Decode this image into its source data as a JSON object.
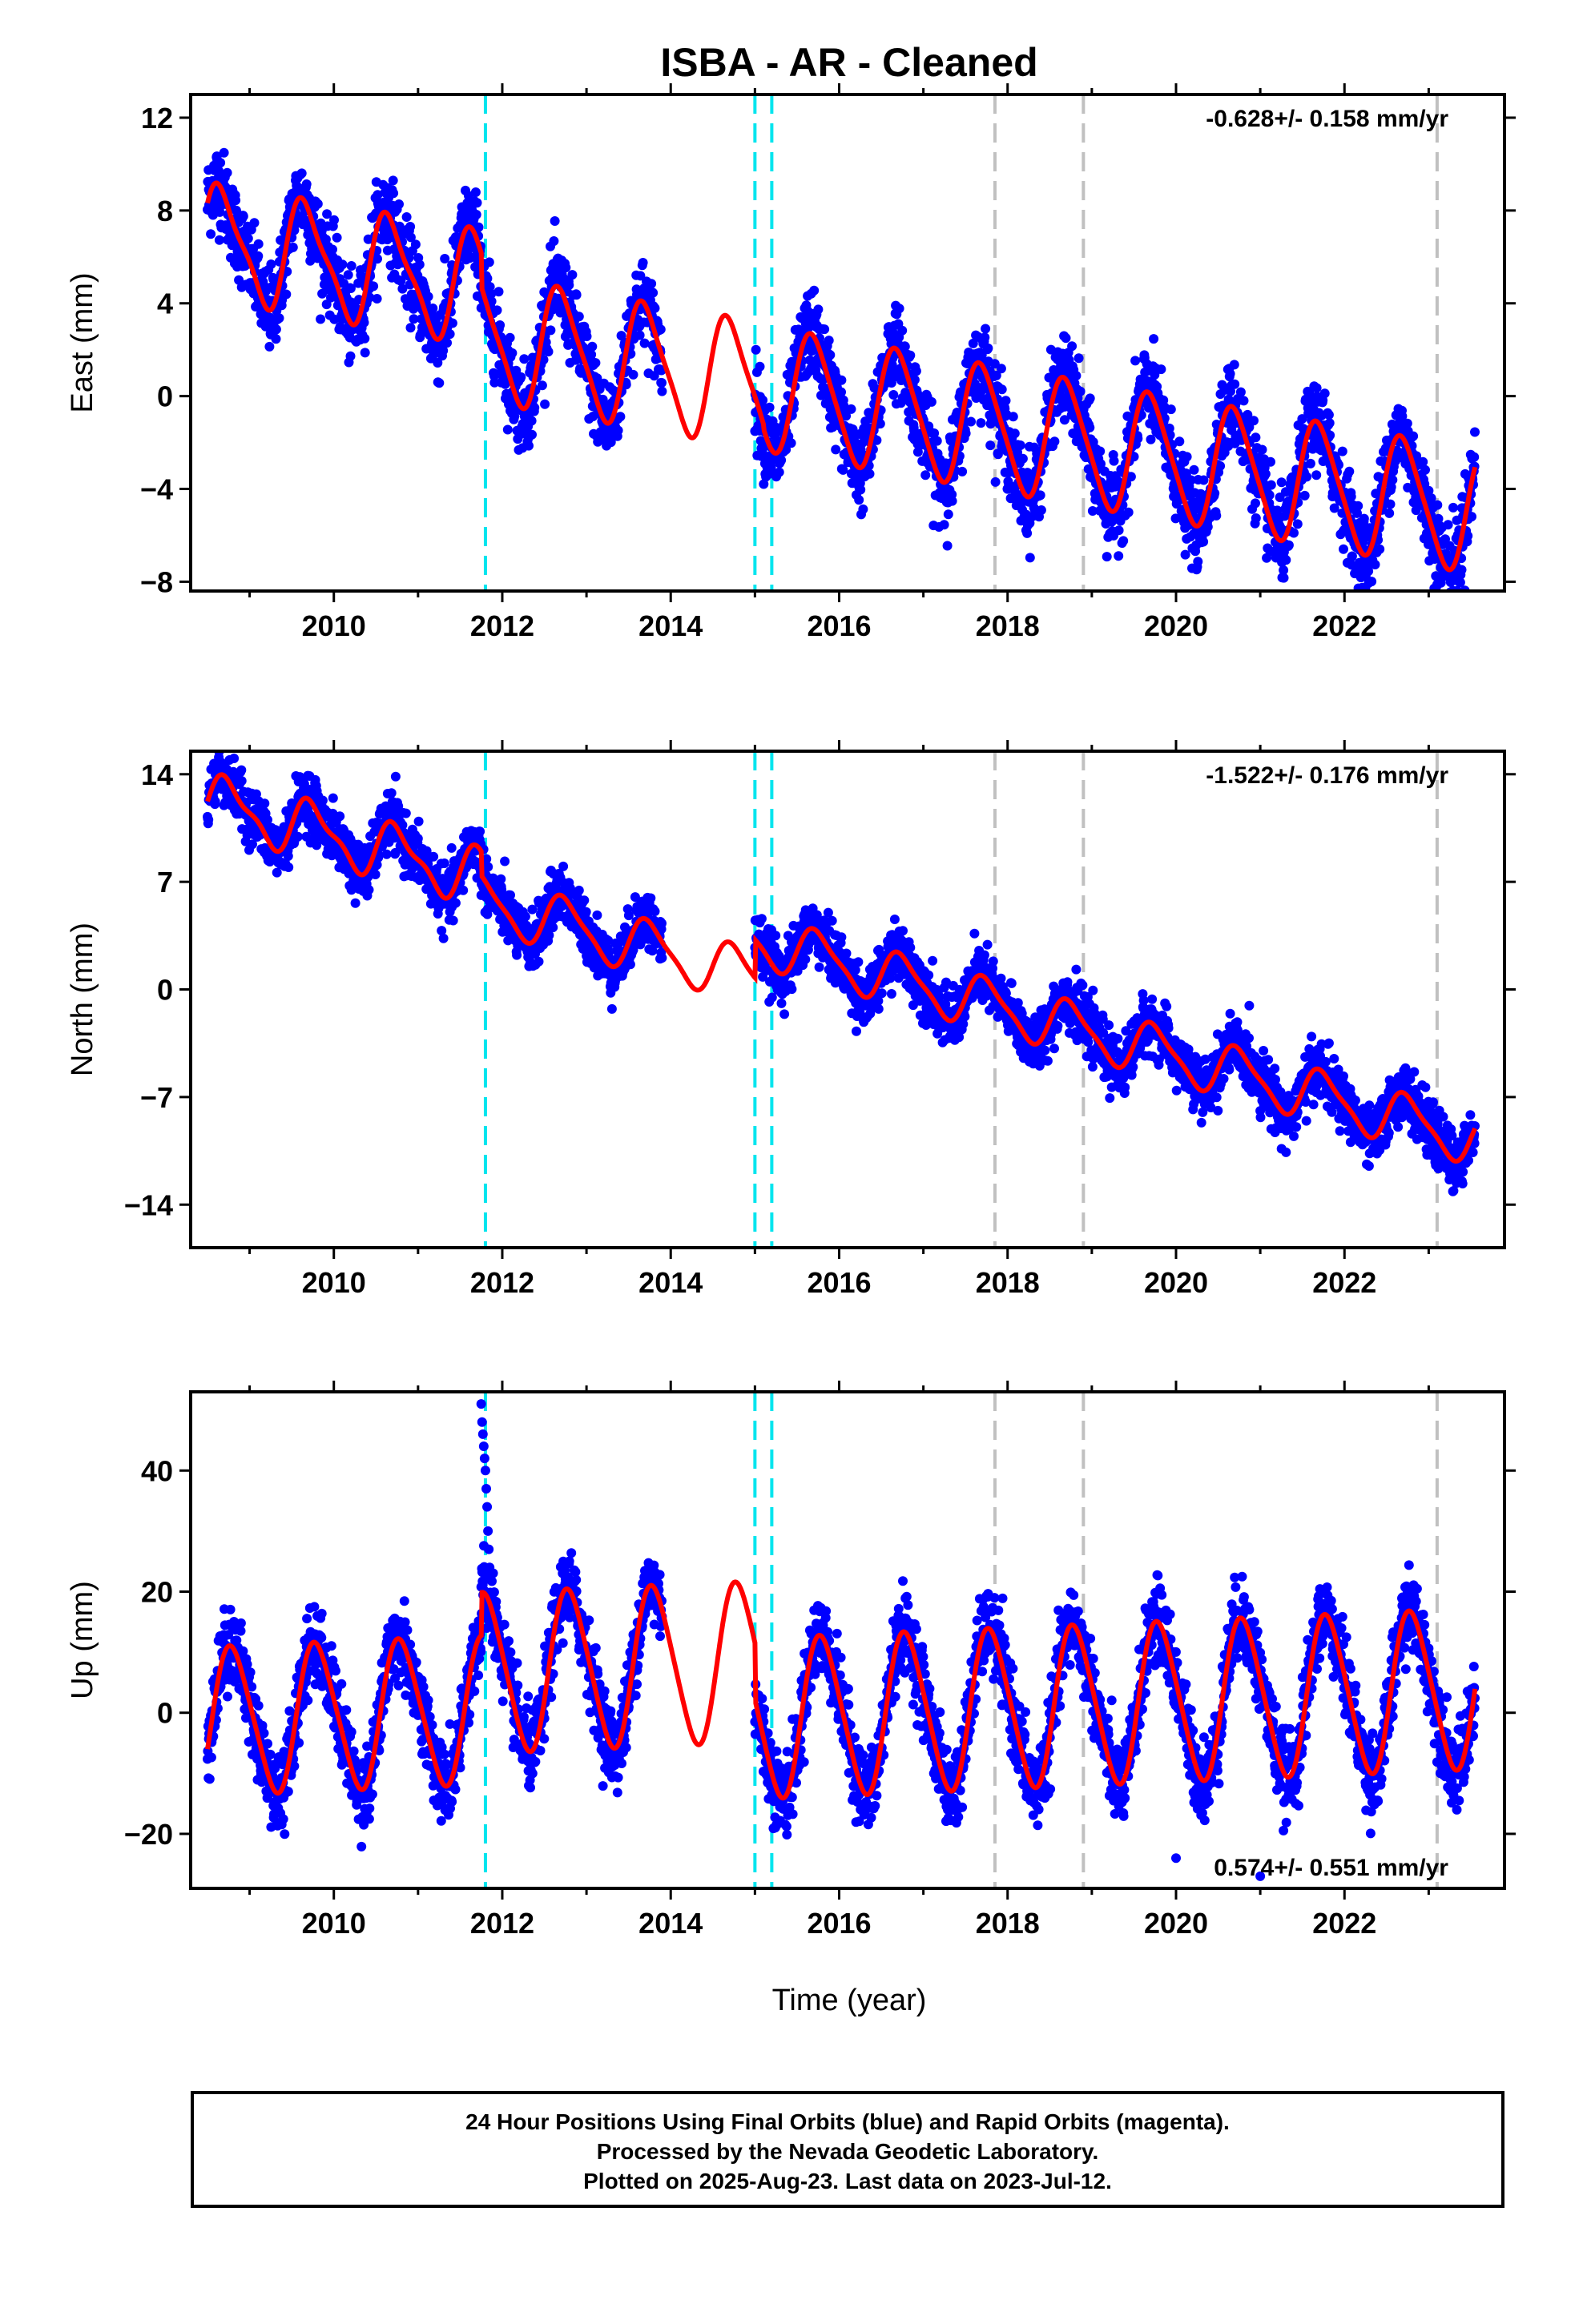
{
  "figure": {
    "title": "ISBA  - AR - Cleaned",
    "x_axis_label": "Time (year)"
  },
  "footer": {
    "line1": "24 Hour Positions Using Final Orbits (blue) and Rapid Orbits (magenta).",
    "line2": "Processed by the Nevada Geodetic Laboratory.",
    "line3": "Plotted on 2025-Aug-23. Last data on 2023-Jul-12."
  },
  "colors": {
    "data_points": "#0000ff",
    "model_fit": "#ff0000",
    "equipment_change": "#00e5ee",
    "other_event": "#c0c0c0",
    "frame": "#000000"
  },
  "chart_data": [
    {
      "type": "scatter",
      "name": "east",
      "ylabel": "East (mm)",
      "rate_text": "-0.628+/- 0.158 mm/yr",
      "rate_position": "top-right",
      "xlim": [
        2008.3,
        2023.9
      ],
      "ylim": [
        -8.4,
        13.0
      ],
      "xticks": [
        2010,
        2012,
        2014,
        2016,
        2018,
        2020,
        2022
      ],
      "yticks": [
        -8,
        -4,
        0,
        4,
        8,
        12
      ],
      "ytick_labels": [
        "−8",
        "−4",
        "0",
        "4",
        "8",
        "12"
      ],
      "equipment_changes": [
        2011.8,
        2015.0,
        2015.2
      ],
      "other_events": [
        2017.85,
        2018.9,
        2023.1
      ],
      "model": {
        "segments": [
          {
            "t0": 2008.5,
            "t1": 2011.75,
            "mid": 2010.1,
            "offset": 5.7,
            "rate": -0.628,
            "annual_amp": 2.3,
            "annual_phase": 0.42,
            "semi_amp": 0.6
          },
          {
            "t0": 2011.75,
            "t1": 2015.1,
            "mid": 2013.4,
            "offset": 1.5,
            "rate": -0.628,
            "annual_amp": 2.6,
            "annual_phase": 0.45,
            "semi_amp": 0.5
          },
          {
            "t0": 2015.1,
            "t1": 2023.55,
            "mid": 2019.3,
            "offset": -2.3,
            "rate": -0.628,
            "annual_amp": 2.6,
            "annual_phase": 0.45,
            "semi_amp": 0.4
          }
        ],
        "gaps": [
          [
            2013.9,
            2015.0
          ]
        ],
        "scatter_sigma": 0.9
      }
    },
    {
      "type": "scatter",
      "name": "north",
      "ylabel": "North (mm)",
      "rate_text": "-1.522+/- 0.176 mm/yr",
      "rate_position": "top-right",
      "xlim": [
        2008.3,
        2023.9
      ],
      "ylim": [
        -16.8,
        15.5
      ],
      "xticks": [
        2010,
        2012,
        2014,
        2016,
        2018,
        2020,
        2022
      ],
      "yticks": [
        -14,
        -7,
        0,
        7,
        14
      ],
      "ytick_labels": [
        "−14",
        "−7",
        "0",
        "7",
        "14"
      ],
      "equipment_changes": [
        2011.8,
        2015.0,
        2015.2
      ],
      "other_events": [
        2017.85,
        2018.9,
        2023.1
      ],
      "model": {
        "segments": [
          {
            "t0": 2008.5,
            "t1": 2011.75,
            "mid": 2010.1,
            "offset": 9.8,
            "rate": -1.522,
            "annual_amp": 1.7,
            "annual_phase": 0.5,
            "semi_amp": 0.6
          },
          {
            "t0": 2011.75,
            "t1": 2015.0,
            "mid": 2013.4,
            "offset": 3.2,
            "rate": -1.522,
            "annual_amp": 1.7,
            "annual_phase": 0.5,
            "semi_amp": 0.4
          },
          {
            "t0": 2015.0,
            "t1": 2023.55,
            "mid": 2019.3,
            "offset": -3.3,
            "rate": -1.522,
            "annual_amp": 1.6,
            "annual_phase": 0.5,
            "semi_amp": 0.4
          }
        ],
        "gaps": [
          [
            2013.9,
            2015.0
          ]
        ],
        "scatter_sigma": 0.9
      }
    },
    {
      "type": "scatter",
      "name": "up",
      "ylabel": "Up (mm)",
      "rate_text": "0.574+/- 0.551 mm/yr",
      "rate_position": "bottom-right",
      "xlim": [
        2008.3,
        2023.9
      ],
      "ylim": [
        -29.0,
        53.0
      ],
      "xticks": [
        2010,
        2012,
        2014,
        2016,
        2018,
        2020,
        2022
      ],
      "yticks": [
        -20,
        0,
        20,
        40
      ],
      "ytick_labels": [
        "−20",
        "0",
        "20",
        "40"
      ],
      "equipment_changes": [
        2011.8,
        2015.0,
        2015.2
      ],
      "other_events": [
        2017.85,
        2018.9,
        2023.1
      ],
      "model": {
        "segments": [
          {
            "t0": 2008.5,
            "t1": 2011.75,
            "mid": 2010.1,
            "offset": -0.5,
            "rate": 0.574,
            "annual_amp": 12.0,
            "annual_phase": 0.55,
            "semi_amp": 1.5
          },
          {
            "t0": 2011.75,
            "t1": 2015.0,
            "mid": 2013.4,
            "offset": 7.5,
            "rate": 0.574,
            "annual_amp": 13.0,
            "annual_phase": 0.55,
            "semi_amp": 1.5
          },
          {
            "t0": 2015.0,
            "t1": 2023.55,
            "mid": 2019.3,
            "offset": 1.5,
            "rate": 0.574,
            "annual_amp": 13.0,
            "annual_phase": 0.55,
            "semi_amp": 1.5
          }
        ],
        "gaps": [
          [
            2013.9,
            2015.0
          ]
        ],
        "scatter_sigma": 3.2,
        "outliers": [
          [
            2011.75,
            51
          ],
          [
            2011.76,
            48
          ],
          [
            2011.77,
            46
          ],
          [
            2011.78,
            44
          ],
          [
            2011.79,
            42
          ],
          [
            2011.8,
            40
          ],
          [
            2011.81,
            37
          ],
          [
            2011.82,
            34
          ],
          [
            2011.83,
            30
          ],
          [
            2011.84,
            27
          ],
          [
            2011.85,
            24
          ],
          [
            2020.0,
            -24
          ],
          [
            2021.0,
            -27
          ]
        ]
      }
    }
  ]
}
